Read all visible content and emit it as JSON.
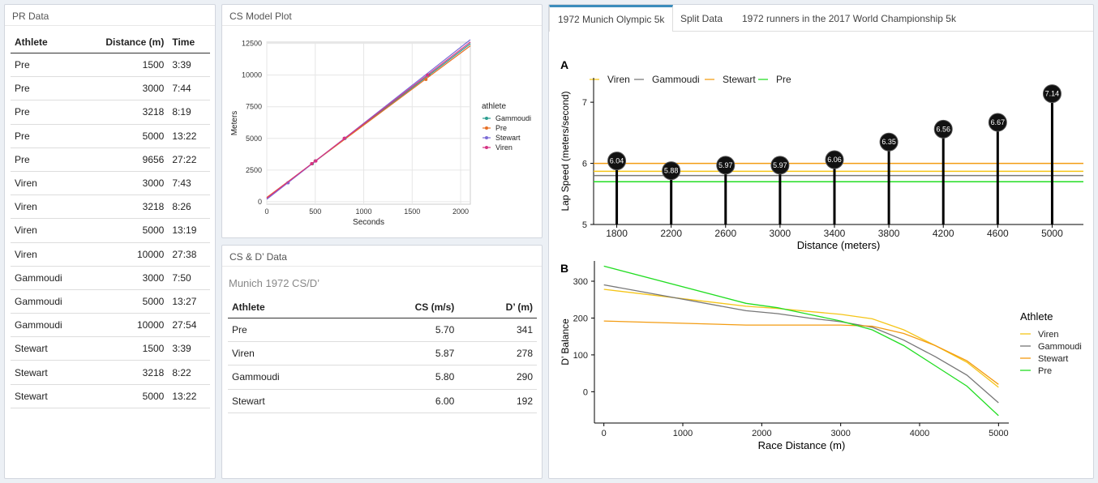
{
  "pr_panel": {
    "title": "PR Data",
    "headers": [
      "Athlete",
      "Distance (m)",
      "Time"
    ],
    "rows": [
      [
        "Pre",
        "1500",
        "3:39"
      ],
      [
        "Pre",
        "3000",
        "7:44"
      ],
      [
        "Pre",
        "3218",
        "8:19"
      ],
      [
        "Pre",
        "5000",
        "13:22"
      ],
      [
        "Pre",
        "9656",
        "27:22"
      ],
      [
        "Viren",
        "3000",
        "7:43"
      ],
      [
        "Viren",
        "3218",
        "8:26"
      ],
      [
        "Viren",
        "5000",
        "13:19"
      ],
      [
        "Viren",
        "10000",
        "27:38"
      ],
      [
        "Gammoudi",
        "3000",
        "7:50"
      ],
      [
        "Gammoudi",
        "5000",
        "13:27"
      ],
      [
        "Gammoudi",
        "10000",
        "27:54"
      ],
      [
        "Stewart",
        "1500",
        "3:39"
      ],
      [
        "Stewart",
        "3218",
        "8:22"
      ],
      [
        "Stewart",
        "5000",
        "13:22"
      ]
    ]
  },
  "cs_plot_panel": {
    "title": "CS Model Plot"
  },
  "csd_panel": {
    "title": "CS & D’ Data",
    "caption": "Munich 1972 CS/D’",
    "headers": [
      "Athlete",
      "CS (m/s)",
      "D’ (m)"
    ],
    "rows": [
      [
        "Pre",
        "5.70",
        "341"
      ],
      [
        "Viren",
        "5.87",
        "278"
      ],
      [
        "Gammoudi",
        "5.80",
        "290"
      ],
      [
        "Stewart",
        "6.00",
        "192"
      ]
    ]
  },
  "tabs": [
    {
      "label": "1972 Munich Olympic 5k",
      "active": true
    },
    {
      "label": "Split Data",
      "active": false
    },
    {
      "label": "1972 runners in the 2017 World Championship 5k",
      "active": false
    }
  ],
  "colors": {
    "Viren": "#f5c518",
    "Gammoudi": "#777777",
    "Stewart": "#f39c12",
    "Pre": "#22dd22",
    "cs_Gammoudi": "#2a9d8f",
    "cs_Pre": "#e76f24",
    "cs_Stewart": "#7b6bd6",
    "cs_Viren": "#d63384"
  },
  "chart_data": [
    {
      "id": "cs_model",
      "type": "scatter",
      "title": "",
      "xlabel": "Seconds",
      "ylabel": "Meters",
      "xlim": [
        0,
        2100
      ],
      "ylim": [
        -200,
        12600
      ],
      "xticks": [
        0,
        500,
        1000,
        1500,
        2000
      ],
      "yticks": [
        0,
        2500,
        5000,
        7500,
        10000,
        12500
      ],
      "legend_title": "athlete",
      "legend_position": "right",
      "series": [
        {
          "name": "Gammoudi",
          "points": [
            [
              470,
              3000
            ],
            [
              807,
              5000
            ],
            [
              1674,
              10000
            ]
          ],
          "cs": 5.8,
          "d": 290
        },
        {
          "name": "Pre",
          "points": [
            [
              219,
              1500
            ],
            [
              464,
              3000
            ],
            [
              499,
              3218
            ],
            [
              802,
              5000
            ],
            [
              1642,
              9656
            ]
          ],
          "cs": 5.7,
          "d": 341
        },
        {
          "name": "Stewart",
          "points": [
            [
              219,
              1500
            ],
            [
              502,
              3218
            ],
            [
              802,
              5000
            ]
          ],
          "cs": 6.0,
          "d": 192
        },
        {
          "name": "Viren",
          "points": [
            [
              463,
              3000
            ],
            [
              506,
              3218
            ],
            [
              799,
              5000
            ],
            [
              1658,
              10000
            ]
          ],
          "cs": 5.87,
          "d": 278
        }
      ]
    },
    {
      "id": "lap_speed",
      "type": "bar",
      "panel_label": "A",
      "xlabel": "Distance (meters)",
      "ylabel": "Lap Speed (meters/second)",
      "ylim": [
        5,
        7.4
      ],
      "yticks": [
        5,
        6,
        7
      ],
      "categories": [
        1800,
        2200,
        2600,
        3000,
        3400,
        3800,
        4200,
        4600,
        5000
      ],
      "values": [
        6.04,
        5.88,
        5.97,
        5.97,
        6.06,
        6.35,
        6.56,
        6.67,
        7.14
      ],
      "legend_position": "top",
      "reference_lines": [
        {
          "name": "Viren",
          "value": 5.87
        },
        {
          "name": "Gammoudi",
          "value": 5.8
        },
        {
          "name": "Stewart",
          "value": 6.0
        },
        {
          "name": "Pre",
          "value": 5.7
        }
      ]
    },
    {
      "id": "d_balance",
      "type": "line",
      "panel_label": "B",
      "xlabel": "Race Distance (m)",
      "ylabel": "D’ Balance",
      "xlim": [
        -120,
        5130
      ],
      "ylim": [
        -85,
        355
      ],
      "xticks": [
        0,
        1000,
        2000,
        3000,
        4000,
        5000
      ],
      "yticks": [
        0,
        100,
        200,
        300
      ],
      "legend_title": "Athlete",
      "legend_position": "right",
      "series": [
        {
          "name": "Viren",
          "x": [
            0,
            1800,
            2200,
            2600,
            3000,
            3400,
            3800,
            4200,
            4600,
            5000
          ],
          "y": [
            278,
            232,
            226,
            218,
            210,
            198,
            168,
            125,
            80,
            12
          ]
        },
        {
          "name": "Gammoudi",
          "x": [
            0,
            1800,
            2200,
            2600,
            3000,
            3400,
            3800,
            4200,
            4600,
            5000
          ],
          "y": [
            290,
            220,
            212,
            200,
            190,
            175,
            140,
            95,
            45,
            -30
          ]
        },
        {
          "name": "Stewart",
          "x": [
            0,
            1800,
            2200,
            2600,
            3000,
            3400,
            3800,
            4200,
            4600,
            5000
          ],
          "y": [
            192,
            181,
            181,
            181,
            181,
            178,
            158,
            125,
            84,
            20
          ]
        },
        {
          "name": "Pre",
          "x": [
            0,
            1800,
            2200,
            2600,
            3000,
            3400,
            3800,
            4200,
            4600,
            5000
          ],
          "y": [
            341,
            240,
            228,
            210,
            192,
            168,
            125,
            70,
            15,
            -65
          ]
        }
      ]
    }
  ]
}
